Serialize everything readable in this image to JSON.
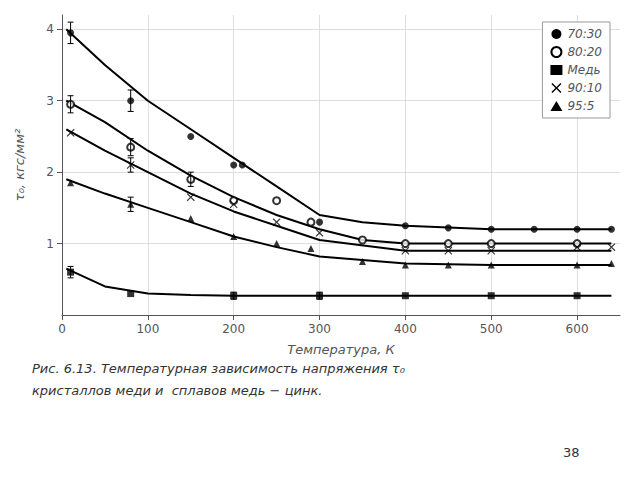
{
  "chart_data": {
    "type": "line",
    "xlabel": "Температура, К",
    "ylabel": "τ₀, кгс/мм²",
    "xlim": [
      0,
      650
    ],
    "ylim": [
      0,
      4.2
    ],
    "xticks": [
      0,
      100,
      200,
      300,
      400,
      500,
      600
    ],
    "yticks": [
      1,
      2,
      3,
      4
    ],
    "grid": true,
    "legend": "upper right",
    "color": "#000000",
    "caption": [
      "Рис. 6.13. Температурная зависимость напряжения τ₀",
      "кристаллов меди и  сплавов медь − цинк."
    ],
    "page_number": "38",
    "series": [
      {
        "name": "70:30",
        "type": "line",
        "x": [
          5,
          50,
          100,
          150,
          200,
          250,
          300,
          350,
          400,
          500,
          600,
          640
        ],
        "values": [
          4.0,
          3.5,
          3.0,
          2.6,
          2.2,
          1.8,
          1.4,
          1.3,
          1.25,
          1.2,
          1.2,
          1.2
        ]
      },
      {
        "name": "70:30",
        "type": "scatter",
        "marker": "circle",
        "x": [
          10,
          80,
          150,
          200,
          210,
          300,
          400,
          450,
          500,
          550,
          600,
          640
        ],
        "values": [
          3.95,
          3.0,
          2.5,
          2.1,
          2.1,
          1.3,
          1.25,
          1.22,
          1.2,
          1.2,
          1.2,
          1.2
        ]
      },
      {
        "name": "80:20",
        "type": "line",
        "x": [
          5,
          50,
          100,
          150,
          200,
          250,
          300,
          350,
          400,
          500,
          600,
          640
        ],
        "values": [
          3.0,
          2.7,
          2.3,
          1.95,
          1.65,
          1.4,
          1.2,
          1.05,
          1.0,
          1.0,
          1.0,
          1.0
        ]
      },
      {
        "name": "80:20",
        "type": "scatter",
        "marker": "open_circle",
        "x": [
          10,
          80,
          150,
          200,
          250,
          290,
          350,
          400,
          450,
          500,
          600
        ],
        "values": [
          2.95,
          2.35,
          1.9,
          1.6,
          1.6,
          1.3,
          1.05,
          1.0,
          1.0,
          1.0,
          1.0
        ]
      },
      {
        "name": "Медь",
        "type": "line",
        "x": [
          5,
          50,
          100,
          150,
          200,
          300,
          400,
          500,
          600,
          640
        ],
        "values": [
          0.65,
          0.4,
          0.3,
          0.28,
          0.27,
          0.27,
          0.27,
          0.27,
          0.27,
          0.27
        ]
      },
      {
        "name": "Медь",
        "type": "scatter",
        "marker": "square",
        "x": [
          10,
          80,
          200,
          300,
          400,
          500,
          600
        ],
        "values": [
          0.6,
          0.3,
          0.27,
          0.27,
          0.27,
          0.27,
          0.27
        ]
      },
      {
        "name": "90:10",
        "type": "line",
        "x": [
          5,
          50,
          100,
          150,
          200,
          250,
          300,
          400,
          500,
          600,
          640
        ],
        "values": [
          2.6,
          2.3,
          2.0,
          1.7,
          1.45,
          1.25,
          1.05,
          0.9,
          0.9,
          0.9,
          0.9
        ]
      },
      {
        "name": "90:10",
        "type": "scatter",
        "marker": "x",
        "x": [
          10,
          80,
          150,
          200,
          250,
          300,
          400,
          450,
          500,
          600,
          640
        ],
        "values": [
          2.55,
          2.1,
          1.65,
          1.55,
          1.3,
          1.15,
          0.9,
          0.9,
          0.9,
          0.95,
          0.95
        ]
      },
      {
        "name": "95:5",
        "type": "line",
        "x": [
          5,
          50,
          100,
          150,
          200,
          250,
          300,
          400,
          500,
          600,
          640
        ],
        "values": [
          1.9,
          1.7,
          1.5,
          1.3,
          1.1,
          0.95,
          0.82,
          0.72,
          0.7,
          0.7,
          0.7
        ]
      },
      {
        "name": "95:5",
        "type": "scatter",
        "marker": "triangle",
        "x": [
          10,
          80,
          150,
          200,
          250,
          290,
          350,
          400,
          450,
          500,
          600,
          640
        ],
        "values": [
          1.85,
          1.55,
          1.35,
          1.1,
          1.0,
          0.93,
          0.75,
          0.7,
          0.7,
          0.7,
          0.7,
          0.72
        ]
      }
    ],
    "error_bars": [
      {
        "x": 10,
        "y": 3.95,
        "yerr": 0.15
      },
      {
        "x": 80,
        "y": 3.0,
        "yerr": 0.15
      },
      {
        "x": 10,
        "y": 2.95,
        "yerr": 0.12
      },
      {
        "x": 80,
        "y": 2.35,
        "yerr": 0.12
      },
      {
        "x": 80,
        "y": 2.1,
        "yerr": 0.1
      },
      {
        "x": 80,
        "y": 1.55,
        "yerr": 0.1
      },
      {
        "x": 10,
        "y": 0.6,
        "yerr": 0.08
      },
      {
        "x": 150,
        "y": 1.9,
        "yerr": 0.1
      },
      {
        "x": 200,
        "y": 0.27,
        "yerr": 0.05
      },
      {
        "x": 300,
        "y": 0.27,
        "yerr": 0.05
      }
    ]
  }
}
